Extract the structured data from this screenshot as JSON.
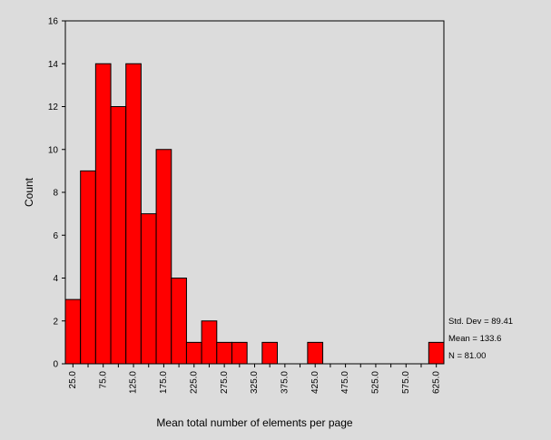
{
  "chart_data": {
    "type": "bar",
    "title": "",
    "xlabel": "Mean total number of elements per page",
    "ylabel": "Count",
    "ylim": [
      0,
      16
    ],
    "y_ticks": [
      "0",
      "2",
      "4",
      "6",
      "8",
      "10",
      "12",
      "14",
      "16"
    ],
    "x_tick_labels": [
      "25.0",
      "75.0",
      "125.0",
      "175.0",
      "225.0",
      "275.0",
      "325.0",
      "375.0",
      "425.0",
      "475.0",
      "525.0",
      "575.0",
      "625.0"
    ],
    "bin_width": 25,
    "x": [
      25,
      50,
      75,
      100,
      125,
      150,
      175,
      200,
      225,
      250,
      275,
      300,
      325,
      350,
      375,
      400,
      425,
      450,
      475,
      500,
      525,
      550,
      575,
      600,
      625
    ],
    "values": [
      3,
      9,
      14,
      12,
      14,
      7,
      10,
      4,
      1,
      2,
      1,
      1,
      0,
      1,
      0,
      0,
      1,
      0,
      0,
      0,
      0,
      0,
      0,
      0,
      1
    ],
    "bar_color": "#ff0000",
    "background_color": "#dcdcdc",
    "grid": false,
    "stats": {
      "std_dev": "Std. Dev = 89.41",
      "mean": "Mean = 133.6",
      "n": "N = 81.00"
    }
  }
}
